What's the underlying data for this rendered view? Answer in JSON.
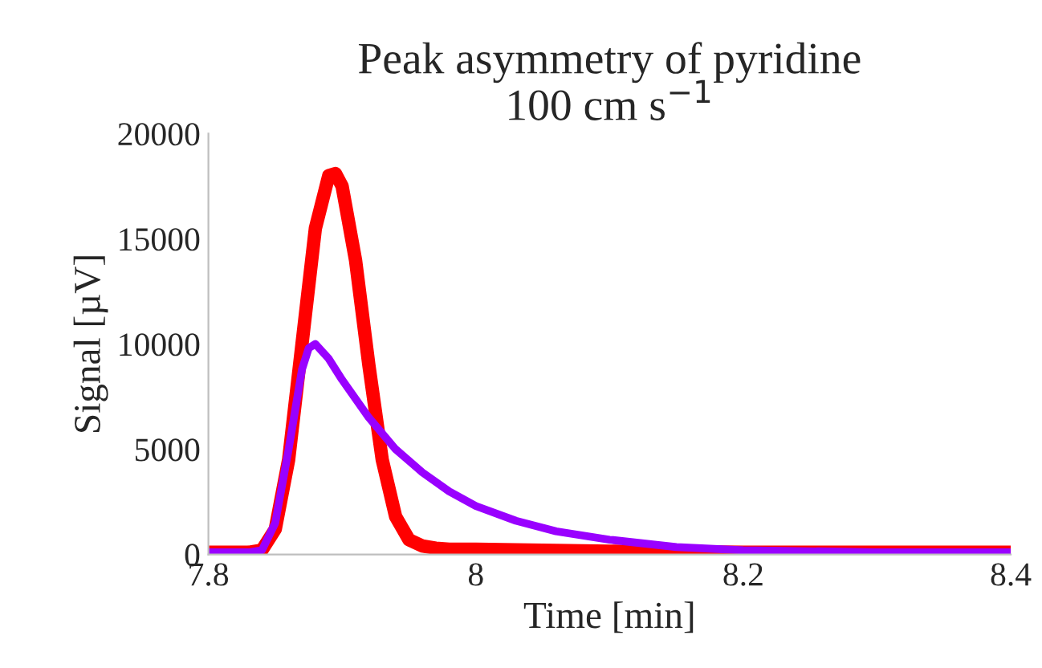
{
  "chart_data": {
    "type": "line",
    "title": "Peak asymmetry of pyridine\n100 cm s$^{−1}$",
    "xlabel": "Time [min]",
    "ylabel": "Signal [µV]",
    "xlim": [
      7.8,
      8.4
    ],
    "xticks": [
      7.8,
      8,
      8.2,
      8.4
    ],
    "ylim": [
      0,
      20000
    ],
    "yticks": [
      0,
      5000,
      10000,
      15000,
      20000
    ],
    "grid": false,
    "marker": "none",
    "line_style": "solid",
    "series": [
      {
        "color": "#ff0000",
        "x": [
          7.8,
          7.83,
          7.84,
          7.85,
          7.86,
          7.87,
          7.88,
          7.89,
          7.895,
          7.9,
          7.91,
          7.92,
          7.93,
          7.94,
          7.95,
          7.96,
          7.97,
          7.98,
          8.0,
          8.05,
          8.1,
          8.2,
          8.3,
          8.4
        ],
        "values": [
          100,
          100,
          200,
          1200,
          4500,
          10000,
          15500,
          18000,
          18100,
          17500,
          14000,
          9000,
          4500,
          1800,
          700,
          400,
          300,
          250,
          250,
          200,
          150,
          100,
          100,
          100
        ]
      },
      {
        "color": "#9900ff",
        "x": [
          7.8,
          7.83,
          7.84,
          7.85,
          7.86,
          7.87,
          7.875,
          7.88,
          7.89,
          7.9,
          7.92,
          7.94,
          7.96,
          7.98,
          8.0,
          8.03,
          8.06,
          8.1,
          8.15,
          8.2,
          8.3,
          8.4
        ],
        "values": [
          100,
          100,
          200,
          1500,
          5000,
          8800,
          9800,
          10000,
          9300,
          8300,
          6500,
          5000,
          3900,
          3000,
          2300,
          1600,
          1100,
          700,
          350,
          200,
          100,
          100
        ]
      }
    ]
  }
}
